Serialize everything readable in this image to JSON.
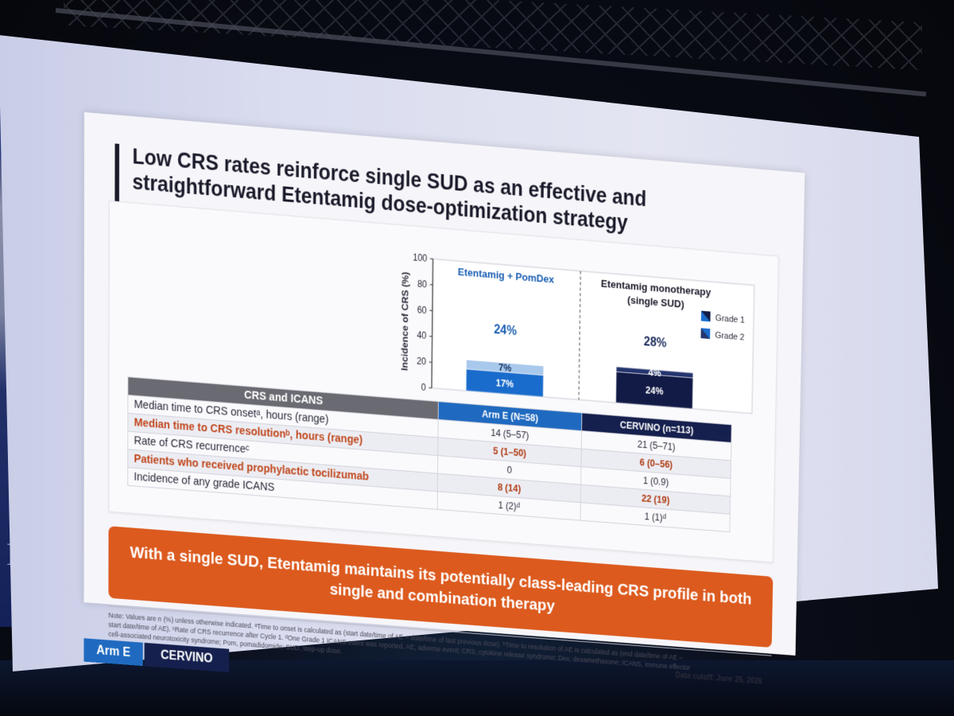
{
  "slide": {
    "title": "Low CRS rates reinforce single SUD as an effective and straightforward Etentamig dose-optimization strategy",
    "banner": "With a single SUD, Etentamig maintains its potentially class-leading CRS profile in both single and combination therapy",
    "note": "Note: Values are n (%) unless otherwise indicated. ᵃTime to onset is calculated as (start date/time of AE – date/time of last previous dose). ᵇTime to resolution of AE is calculated as (end date/time of AE – start date/time of AE). ᶜRate of CRS recurrence after Cycle 1. ᵈOne Grade 1 ICANS event was reported. AE, adverse event; CRS, cytokine release syndrome; Dex, dexamethasone; ICANS, immune effector cell-associated neurotoxicity syndrome; Pom, pomadidomide; SUD, step-up dose.",
    "data_cutoff": "Data cutoff: June 25, 2026",
    "tags": {
      "arm_e": "Arm E",
      "cervino": "CERVINO"
    }
  },
  "chart_data": {
    "type": "bar",
    "stacked": true,
    "ylabel": "Incidence of CRS (%)",
    "ylim": [
      0,
      100
    ],
    "yticks": [
      0,
      20,
      40,
      60,
      80,
      100
    ],
    "categories": [
      "Etentamig + PomDex",
      "Etentamig monotherapy (single SUD)"
    ],
    "category_lines": [
      [
        "Etentamig + PomDex"
      ],
      [
        "Etentamig monotherapy",
        "(single SUD)"
      ]
    ],
    "totals": [
      "24%",
      "28%"
    ],
    "series": [
      {
        "name": "Grade 1",
        "values": [
          17,
          24
        ],
        "labels": [
          "17%",
          "24%"
        ],
        "colors": [
          "#1a6ccc",
          "#121b46"
        ]
      },
      {
        "name": "Grade 2",
        "values": [
          7,
          4
        ],
        "labels": [
          "7%",
          "4%"
        ],
        "colors": [
          "#a8c8ec",
          "#24346e"
        ]
      }
    ],
    "legend_position": "right",
    "grid": false
  },
  "table": {
    "headers": [
      "CRS and ICANS",
      "Arm E (N=58)",
      "CERVINO (n=113)"
    ],
    "rows": [
      {
        "label": "Median time to CRS onsetᵃ, hours (range)",
        "arm_e": "14 (5–57)",
        "cervino": "21 (5–71)",
        "emphasis": false
      },
      {
        "label": "Median time to CRS resolutionᵇ, hours (range)",
        "arm_e": "5 (1–50)",
        "cervino": "6 (0–56)",
        "emphasis": true
      },
      {
        "label": "Rate of CRS recurrenceᶜ",
        "arm_e": "0",
        "cervino": "1 (0.9)",
        "emphasis": false
      },
      {
        "label": "Patients who received prophylactic tocilizumab",
        "arm_e": "8 (14)",
        "cervino": "22 (19)",
        "emphasis": true
      },
      {
        "label": "Incidence of any grade ICANS",
        "arm_e": "1 (2)ᵈ",
        "cervino": "1 (1)ᵈ",
        "emphasis": false
      }
    ]
  }
}
